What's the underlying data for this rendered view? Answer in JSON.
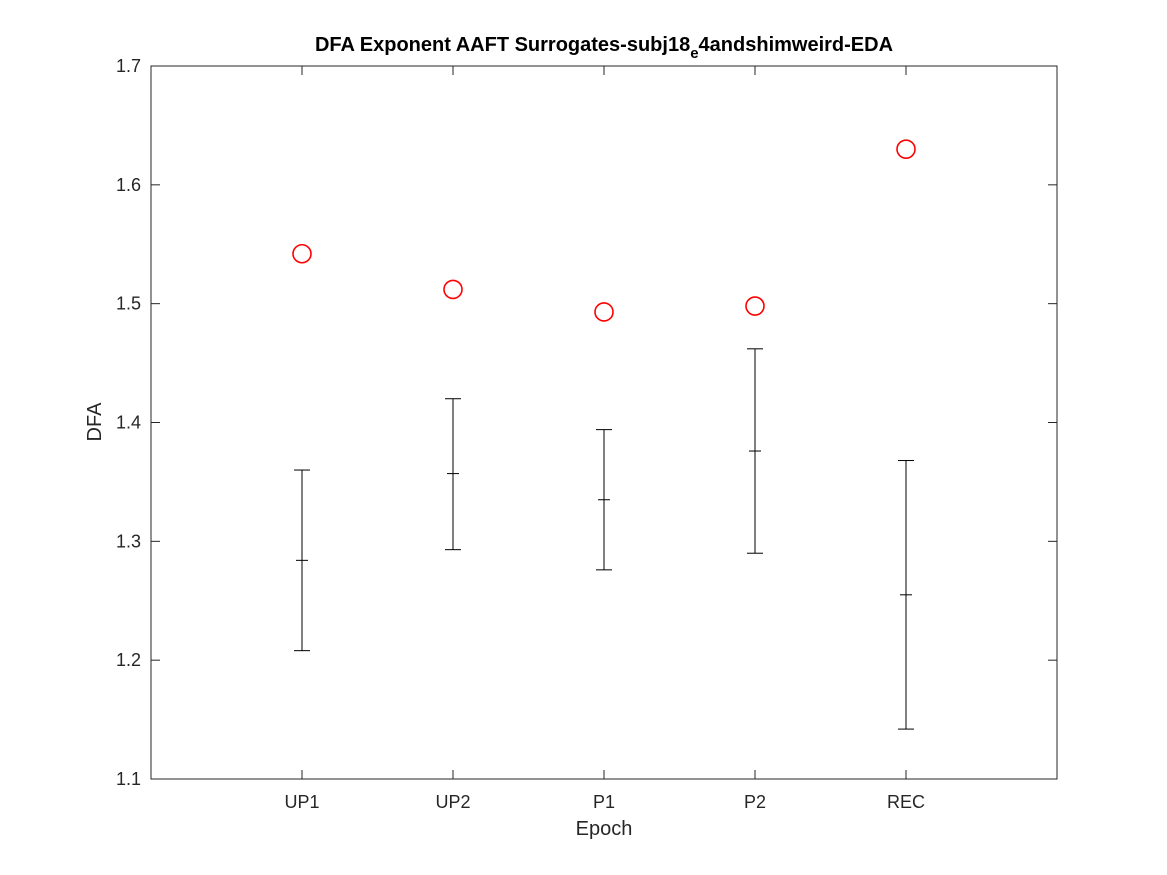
{
  "chart_data": {
    "type": "scatter",
    "title_main": "DFA Exponent AAFT Surrogates-subj18",
    "title_sub": "e",
    "title_rest": "4andshimweird-EDA",
    "xlabel": "Epoch",
    "ylabel": "DFA",
    "categories": [
      "UP1",
      "UP2",
      "P1",
      "P2",
      "REC"
    ],
    "xlim": [
      0,
      6
    ],
    "ylim": [
      1.1,
      1.7
    ],
    "yticks": [
      "1.1",
      "1.2",
      "1.3",
      "1.4",
      "1.5",
      "1.6",
      "1.7"
    ],
    "grid": false,
    "series": [
      {
        "marker": "circle",
        "color": "#ff0000",
        "values": [
          1.542,
          1.512,
          1.493,
          1.498,
          1.63
        ]
      },
      {
        "marker": "errorbar",
        "color": "#000000",
        "values": [
          1.284,
          1.357,
          1.335,
          1.376,
          1.255
        ],
        "lower": [
          1.208,
          1.293,
          1.276,
          1.29,
          1.142
        ],
        "upper": [
          1.36,
          1.42,
          1.394,
          1.462,
          1.368
        ]
      }
    ]
  }
}
